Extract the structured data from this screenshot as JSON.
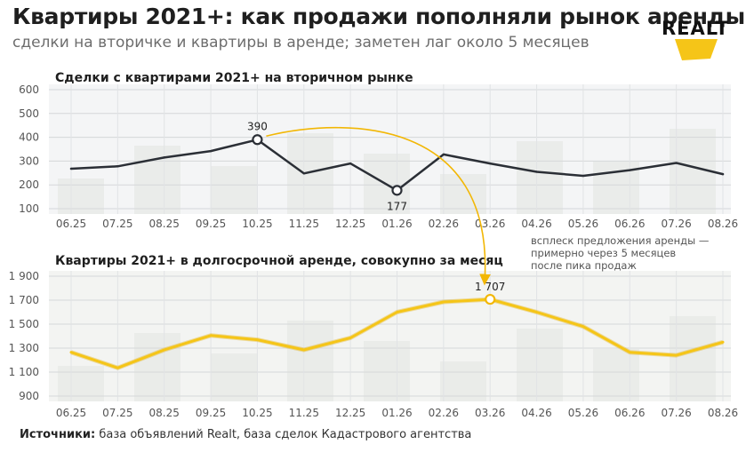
{
  "header": {
    "title": "Квартиры 2021+: как продажи пополняли рынок аренды",
    "subtitle": "сделки на вторичке и квартиры в аренде; заметен лаг около 5 месяцев"
  },
  "logo": {
    "text": "REALT"
  },
  "chart_data": [
    {
      "type": "line",
      "title": "Сделки с квартирами 2021+ на вторичном рынке",
      "categories": [
        "06.25",
        "07.25",
        "08.25",
        "09.25",
        "10.25",
        "11.25",
        "12.25",
        "01.26",
        "02.26",
        "03.26",
        "04.26",
        "05.26",
        "06.26",
        "07.26",
        "08.26"
      ],
      "values": [
        268,
        278,
        315,
        342,
        390,
        248,
        290,
        177,
        328,
        290,
        255,
        238,
        262,
        292,
        245
      ],
      "ylim": [
        100,
        600
      ],
      "yticks": [
        "100",
        "200",
        "300",
        "400",
        "500",
        "600"
      ],
      "point_labels": [
        {
          "index": 4,
          "text": "390"
        },
        {
          "index": 7,
          "text": "177"
        }
      ],
      "color": "#2b2f36",
      "grid": true
    },
    {
      "type": "line",
      "title": "Квартиры 2021+ в долгосрочной аренде, совокупно за месяц",
      "categories": [
        "06.25",
        "07.25",
        "08.25",
        "09.25",
        "10.25",
        "11.25",
        "12.25",
        "01.26",
        "02.26",
        "03.26",
        "04.26",
        "05.26",
        "06.26",
        "07.26",
        "08.26"
      ],
      "values": [
        1265,
        1135,
        1285,
        1405,
        1370,
        1285,
        1385,
        1600,
        1685,
        1707,
        1600,
        1480,
        1265,
        1240,
        1350
      ],
      "ylim": [
        900,
        1900
      ],
      "yticks": [
        "900",
        "1 100",
        "1 300",
        "1 500",
        "1 700",
        "1 900"
      ],
      "point_labels": [
        {
          "index": 9,
          "text": "1 707"
        }
      ],
      "color": "#f5c518",
      "grid": true
    }
  ],
  "annotation": {
    "lines": [
      "всплеск предложения аренды —",
      "примерно через 5 месяцев",
      "после пика продаж"
    ],
    "color": "#f2b705"
  },
  "footer": {
    "label": "Источники:",
    "text": "база объявлений Realt, база сделок Кадастрового агентства"
  }
}
